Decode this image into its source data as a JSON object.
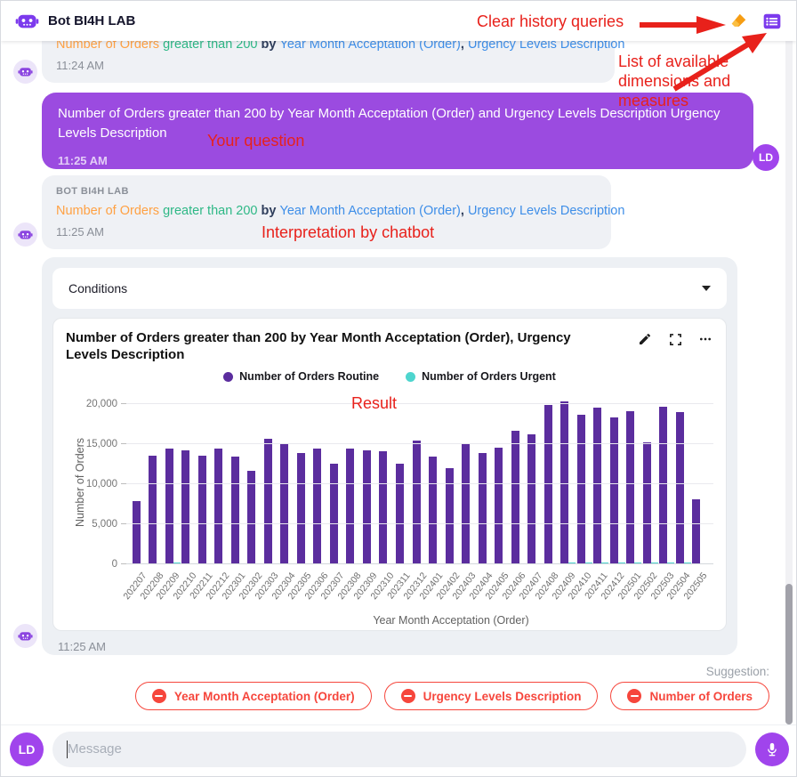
{
  "header": {
    "title": "Bot BI4H LAB"
  },
  "annotations": {
    "clear_history": "Clear history queries",
    "dimensions": "List of available dimensions and measures",
    "your_question": "Your question",
    "interpretation": "Interpretation by chatbot",
    "result": "Result"
  },
  "interpretation_segments": [
    {
      "text": "Number of Orders",
      "color": "orange"
    },
    {
      "text": " greater than 200",
      "color": "green"
    },
    {
      "text": " by ",
      "color": "dark"
    },
    {
      "text": "Year Month Acceptation (Order)",
      "color": "blue"
    },
    {
      "text": ", ",
      "color": "dark"
    },
    {
      "text": "Urgency Levels Description",
      "color": "blue"
    }
  ],
  "messages": {
    "previous_bot": {
      "time": "11:24 AM"
    },
    "user": {
      "text": "Number of Orders greater than 200 by Year Month Acceptation (Order) and Urgency Levels Description Urgency Levels Description",
      "time": "11:25 AM",
      "initials": "LD"
    },
    "bot_interpretation": {
      "sender": "BOT BI4H LAB",
      "time": "11:25 AM"
    },
    "result_time": "11:25 AM"
  },
  "conditions_label": "Conditions",
  "chart_data": {
    "type": "bar",
    "title": "Number of Orders greater than 200 by Year Month Acceptation (Order), Urgency Levels Description",
    "xlabel": "Year Month Acceptation (Order)",
    "ylabel": "Number of Orders",
    "ylim": [
      0,
      20000
    ],
    "yticks": [
      0,
      5000,
      10000,
      15000,
      20000
    ],
    "grid": true,
    "legend_position": "top",
    "categories": [
      "202207",
      "202208",
      "202209",
      "202210",
      "202211",
      "202212",
      "202301",
      "202302",
      "202303",
      "202304",
      "202305",
      "202306",
      "202307",
      "202308",
      "202309",
      "202310",
      "202311",
      "202312",
      "202401",
      "202402",
      "202403",
      "202404",
      "202405",
      "202406",
      "202407",
      "202408",
      "202409",
      "202410",
      "202411",
      "202412",
      "202501",
      "202502",
      "202503",
      "202504",
      "202505"
    ],
    "series": [
      {
        "name": "Number of Orders Routine",
        "color": "#5b2d9e",
        "values": [
          7900,
          13600,
          14400,
          14200,
          13600,
          14400,
          13400,
          11700,
          15700,
          15100,
          13900,
          14500,
          12600,
          14400,
          14200,
          14100,
          12600,
          15400,
          13500,
          12000,
          15000,
          13900,
          14600,
          16700,
          16200,
          19900,
          20300,
          18700,
          19600,
          18300,
          19100,
          15200,
          19700,
          19000,
          8100
        ]
      },
      {
        "name": "Number of Orders Urgent",
        "color": "#4ed5ce",
        "values": [
          60,
          170,
          180,
          170,
          160,
          170,
          160,
          100,
          90,
          90,
          90,
          90,
          80,
          90,
          90,
          160,
          90,
          90,
          90,
          80,
          90,
          90,
          160,
          90,
          90,
          170,
          180,
          180,
          180,
          190,
          280,
          180,
          190,
          190,
          100
        ]
      }
    ]
  },
  "suggestion": {
    "label": "Suggestion:",
    "chips": [
      "Year Month Acceptation (Order)",
      "Urgency Levels Description",
      "Number of Orders"
    ]
  },
  "composer": {
    "placeholder": "Message",
    "initials": "LD"
  }
}
